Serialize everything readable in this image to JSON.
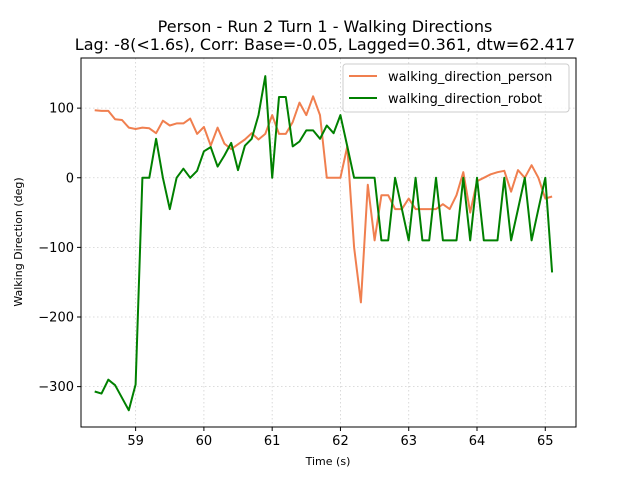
{
  "chart_data": {
    "type": "line",
    "title": "Person - Run 2 Turn 1 - Walking Directions",
    "subtitle": "Lag: -8(<1.6s), Corr: Base=-0.05, Lagged=0.361, dtw=62.417",
    "xlabel": "Time (s)",
    "ylabel": "Walking Direction (deg)",
    "xlim": [
      58.2,
      65.45
    ],
    "ylim": [
      -358,
      172
    ],
    "xticks": [
      59,
      60,
      61,
      62,
      63,
      64,
      65
    ],
    "yticks": [
      -300,
      -200,
      -100,
      0,
      100
    ],
    "xtick_labels": [
      "59",
      "60",
      "61",
      "62",
      "63",
      "64",
      "65"
    ],
    "ytick_labels": [
      "−300",
      "−200",
      "−100",
      "0",
      "100"
    ],
    "grid": true,
    "legend_position": "upper-right",
    "series": [
      {
        "name": "walking_direction_person",
        "color": "#f07f4f",
        "x": [
          58.4,
          58.5,
          58.6,
          58.7,
          58.8,
          58.9,
          59.0,
          59.1,
          59.2,
          59.3,
          59.4,
          59.5,
          59.6,
          59.7,
          59.8,
          59.9,
          60.0,
          60.1,
          60.2,
          60.3,
          60.4,
          60.5,
          60.6,
          60.7,
          60.8,
          60.9,
          61.0,
          61.1,
          61.2,
          61.3,
          61.4,
          61.5,
          61.6,
          61.7,
          61.8,
          61.9,
          62.0,
          62.1,
          62.2,
          62.3,
          62.4,
          62.5,
          62.6,
          62.7,
          62.8,
          62.9,
          63.0,
          63.1,
          63.2,
          63.3,
          63.4,
          63.5,
          63.6,
          63.7,
          63.8,
          63.9,
          64.0,
          64.1,
          64.2,
          64.3,
          64.4,
          64.5,
          64.6,
          64.7,
          64.8,
          64.9,
          65.0,
          65.1
        ],
        "y": [
          97,
          96,
          96,
          84,
          83,
          72,
          70,
          72,
          71,
          64,
          82,
          75,
          78,
          78,
          85,
          63,
          73,
          46,
          72,
          49,
          41,
          48,
          55,
          64,
          55,
          63,
          90,
          63,
          63,
          80,
          108,
          90,
          117,
          90,
          0,
          0,
          0,
          45,
          -100,
          -179,
          -10,
          -90,
          -25,
          -25,
          -45,
          -45,
          -30,
          -45,
          -45,
          -45,
          -45,
          -38,
          -45,
          -25,
          8,
          -50,
          -5,
          0,
          5,
          8,
          10,
          -20,
          11,
          0,
          18,
          0,
          -30,
          -27
        ]
      },
      {
        "name": "walking_direction_robot",
        "color": "#008000",
        "x": [
          58.4,
          58.5,
          58.6,
          58.7,
          58.8,
          58.9,
          59.0,
          59.1,
          59.2,
          59.3,
          59.4,
          59.5,
          59.6,
          59.7,
          59.8,
          59.9,
          60.0,
          60.1,
          60.2,
          60.3,
          60.4,
          60.5,
          60.6,
          60.7,
          60.8,
          60.9,
          61.0,
          61.1,
          61.2,
          61.3,
          61.4,
          61.5,
          61.6,
          61.7,
          61.8,
          61.9,
          62.0,
          62.1,
          62.2,
          62.3,
          62.4,
          62.5,
          62.6,
          62.7,
          62.8,
          62.9,
          63.0,
          63.1,
          63.2,
          63.3,
          63.4,
          63.5,
          63.6,
          63.7,
          63.8,
          63.9,
          64.0,
          64.1,
          64.2,
          64.3,
          64.4,
          64.5,
          64.6,
          64.7,
          64.8,
          64.9,
          65.0,
          65.1
        ],
        "y": [
          -307,
          -310,
          -290,
          -298,
          -316,
          -334,
          -297,
          0,
          0,
          56,
          0,
          -45,
          0,
          13,
          0,
          10,
          38,
          44,
          16,
          32,
          50,
          11,
          46,
          56,
          90,
          146,
          0,
          116,
          116,
          45,
          52,
          68,
          68,
          56,
          75,
          64,
          90,
          45,
          0,
          0,
          0,
          0,
          -90,
          -90,
          0,
          -45,
          -90,
          0,
          -90,
          -90,
          0,
          -90,
          -90,
          -90,
          0,
          -90,
          0,
          -90,
          -90,
          -90,
          0,
          -90,
          -45,
          0,
          -90,
          -45,
          0,
          -136
        ]
      }
    ]
  }
}
